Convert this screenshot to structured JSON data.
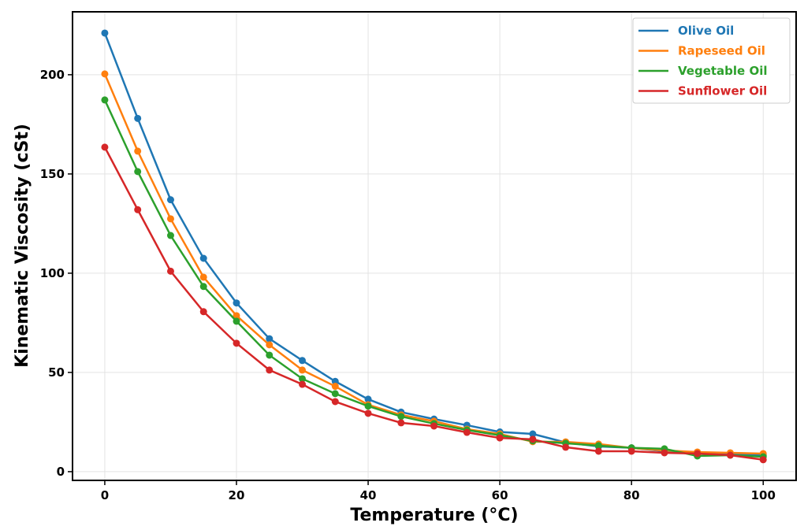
{
  "chart_data": {
    "type": "line",
    "title": "",
    "xlabel": "Temperature ($^\\circ$C)",
    "xlabel_display": "Temperature (°C)",
    "ylabel": "Kinematic Viscosity (cSt)",
    "xlim": [
      -4.9,
      105
    ],
    "ylim": [
      -4.4,
      231.7
    ],
    "xticks": [
      0,
      20,
      40,
      60,
      80,
      100
    ],
    "yticks": [
      0,
      50,
      100,
      150,
      200
    ],
    "grid": true,
    "legend_position": "top-right",
    "markers": true,
    "x": [
      0,
      5,
      10,
      15,
      20,
      25,
      30,
      35,
      40,
      45,
      50,
      55,
      60,
      65,
      70,
      75,
      80,
      85,
      90,
      95,
      100
    ],
    "series": [
      {
        "name": "Olive Oil",
        "color": "#1f77b4",
        "values": [
          221,
          178,
          137,
          107.5,
          85,
          67,
          56,
          45.5,
          36.5,
          30,
          26.5,
          23.4,
          20,
          19,
          14.7,
          12.7,
          12,
          10.3,
          9.7,
          8.9,
          8.3
        ]
      },
      {
        "name": "Rapeseed Oil",
        "color": "#ff7f0e",
        "values": [
          200.4,
          161.5,
          127.4,
          98,
          78.6,
          63.9,
          51.2,
          43,
          33.7,
          28.6,
          25.4,
          21.4,
          19,
          15.1,
          15,
          13.9,
          11.9,
          10.7,
          9.9,
          9.5,
          9.1
        ]
      },
      {
        "name": "Vegetable Oil",
        "color": "#2ca02c",
        "values": [
          187.3,
          151.2,
          119,
          93.3,
          75.8,
          58.7,
          46.8,
          39.3,
          33,
          27.8,
          24.2,
          21,
          18.3,
          15.5,
          14.3,
          13.1,
          12,
          11.5,
          7.9,
          8.3,
          7.5
        ]
      },
      {
        "name": "Sunflower Oil",
        "color": "#d62728",
        "values": [
          163.5,
          132,
          101,
          80.6,
          64.7,
          51.2,
          44,
          35.3,
          29.4,
          24.6,
          23,
          19.8,
          17,
          16.3,
          12.3,
          10.3,
          10.3,
          9.5,
          9.1,
          8.3,
          6
        ]
      }
    ]
  }
}
